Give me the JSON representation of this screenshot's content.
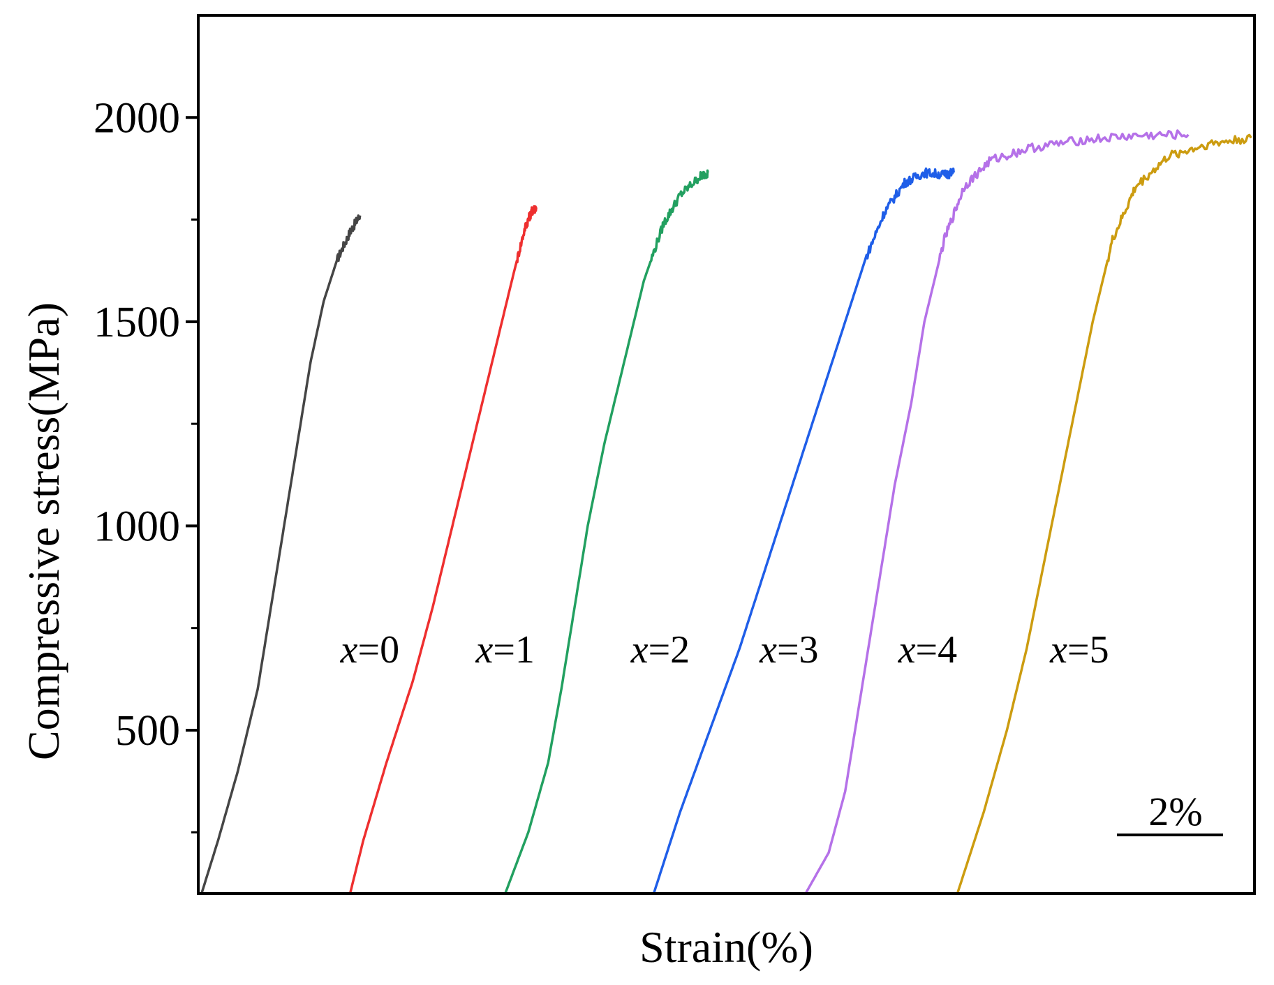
{
  "chart_data": {
    "type": "line",
    "xlabel": "Strain(%)",
    "ylabel": "Compressive stress(MPa)",
    "yticks": [
      500,
      1000,
      1500,
      2000
    ],
    "ylim": [
      100,
      2250
    ],
    "xlim": [
      0,
      16
    ],
    "x_tick_labels_shown": false,
    "grid": false,
    "legend": "none",
    "scale_bar": {
      "label": "2%",
      "length": 2
    },
    "series": [
      {
        "label": "x=0",
        "color": "#454545",
        "points": [
          [
            0.05,
            100
          ],
          [
            0.3,
            230
          ],
          [
            0.6,
            400
          ],
          [
            0.9,
            600
          ],
          [
            1.1,
            800
          ],
          [
            1.3,
            1000
          ],
          [
            1.5,
            1200
          ],
          [
            1.7,
            1400
          ],
          [
            1.9,
            1550
          ],
          [
            2.1,
            1650
          ],
          [
            2.3,
            1720
          ],
          [
            2.45,
            1760
          ]
        ]
      },
      {
        "label": "x=1",
        "color": "#ee2f2f",
        "points": [
          [
            2.3,
            100
          ],
          [
            2.5,
            230
          ],
          [
            2.85,
            420
          ],
          [
            3.25,
            620
          ],
          [
            3.55,
            800
          ],
          [
            3.85,
            1000
          ],
          [
            4.15,
            1200
          ],
          [
            4.45,
            1400
          ],
          [
            4.75,
            1600
          ],
          [
            4.95,
            1730
          ],
          [
            5.05,
            1770
          ],
          [
            5.12,
            1780
          ]
        ]
      },
      {
        "label": "x=2",
        "color": "#22a060",
        "points": [
          [
            4.65,
            100
          ],
          [
            5.0,
            250
          ],
          [
            5.3,
            420
          ],
          [
            5.5,
            600
          ],
          [
            5.7,
            800
          ],
          [
            5.9,
            1000
          ],
          [
            6.15,
            1200
          ],
          [
            6.45,
            1400
          ],
          [
            6.75,
            1600
          ],
          [
            7.05,
            1740
          ],
          [
            7.3,
            1810
          ],
          [
            7.6,
            1855
          ],
          [
            7.72,
            1865
          ]
        ]
      },
      {
        "label": "x=3",
        "color": "#1f5ee8",
        "points": [
          [
            6.9,
            100
          ],
          [
            7.3,
            300
          ],
          [
            7.75,
            500
          ],
          [
            8.2,
            700
          ],
          [
            8.6,
            900
          ],
          [
            9.0,
            1100
          ],
          [
            9.4,
            1300
          ],
          [
            9.8,
            1500
          ],
          [
            10.1,
            1650
          ],
          [
            10.4,
            1770
          ],
          [
            10.7,
            1840
          ],
          [
            11.0,
            1865
          ],
          [
            11.3,
            1860
          ],
          [
            11.45,
            1865
          ]
        ]
      },
      {
        "label": "x=4",
        "color": "#b571e8",
        "points": [
          [
            9.2,
            100
          ],
          [
            9.55,
            200
          ],
          [
            9.8,
            350
          ],
          [
            9.95,
            500
          ],
          [
            10.15,
            700
          ],
          [
            10.35,
            900
          ],
          [
            10.55,
            1100
          ],
          [
            10.8,
            1300
          ],
          [
            11.0,
            1500
          ],
          [
            11.3,
            1700
          ],
          [
            11.6,
            1830
          ],
          [
            12.0,
            1895
          ],
          [
            12.6,
            1925
          ],
          [
            13.4,
            1945
          ],
          [
            14.2,
            1955
          ],
          [
            15.0,
            1958
          ]
        ]
      },
      {
        "label": "x=5",
        "color": "#cc9c10",
        "points": [
          [
            11.5,
            100
          ],
          [
            11.9,
            300
          ],
          [
            12.25,
            500
          ],
          [
            12.55,
            700
          ],
          [
            12.8,
            900
          ],
          [
            13.05,
            1100
          ],
          [
            13.3,
            1300
          ],
          [
            13.55,
            1500
          ],
          [
            13.85,
            1700
          ],
          [
            14.2,
            1830
          ],
          [
            14.7,
            1905
          ],
          [
            15.3,
            1935
          ],
          [
            15.95,
            1950
          ]
        ]
      }
    ]
  }
}
